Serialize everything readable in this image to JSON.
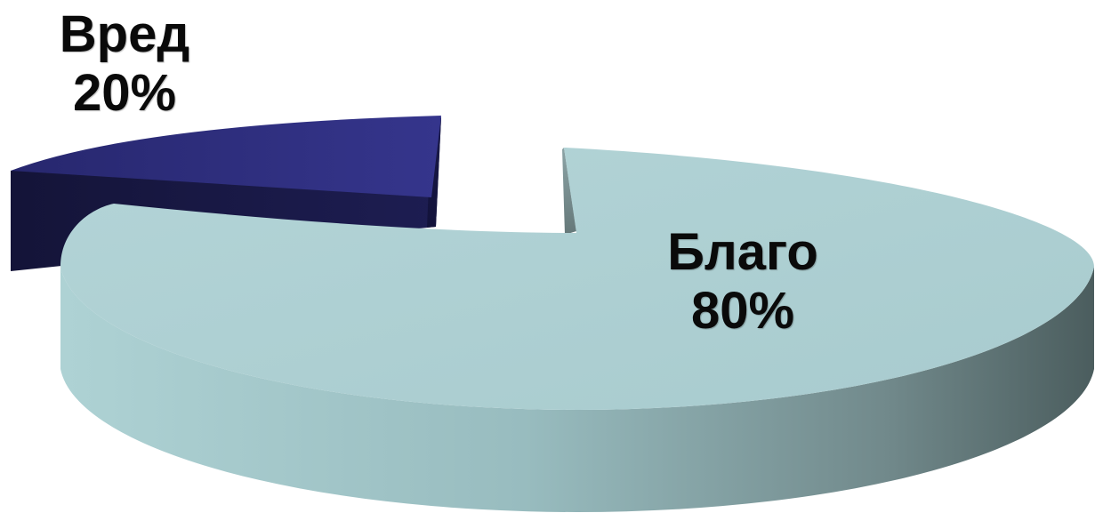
{
  "chart_data": {
    "type": "pie",
    "slices": [
      {
        "label": "Благо",
        "value": 80,
        "display": "80%",
        "color": "#a9cdd0"
      },
      {
        "label": "Вред",
        "value": 20,
        "display": "20%",
        "color": "#2e2e82"
      }
    ]
  }
}
